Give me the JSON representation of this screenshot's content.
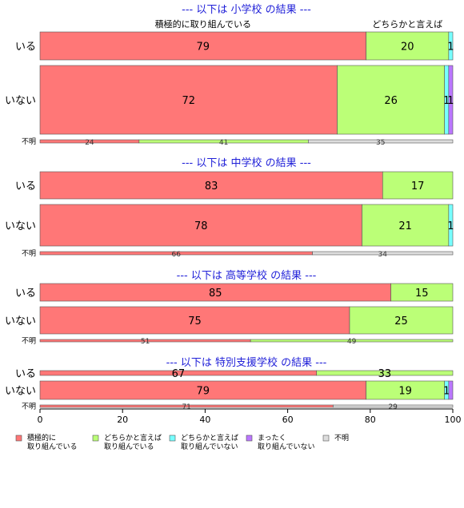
{
  "chart_data": {
    "type": "bar",
    "orientation": "horizontal",
    "stacked": true,
    "xlim": [
      0,
      100
    ],
    "x_ticks": [
      "0",
      "20",
      "40",
      "60",
      "80",
      "100"
    ],
    "legend": {
      "position": "bottom",
      "entries": [
        {
          "label_lines": [
            "積極的に",
            "取り組んでいる"
          ],
          "color": "#FF7777"
        },
        {
          "label_lines": [
            "どちらかと言えば",
            "取り組んでいる"
          ],
          "color": "#BBFF77"
        },
        {
          "label_lines": [
            "どちらかと言えば",
            "取り組んでいない"
          ],
          "color": "#77FFFF"
        },
        {
          "label_lines": [
            "まったく",
            "取り組んでいない"
          ],
          "color": "#BB77FF"
        },
        {
          "label_lines": [
            "不明"
          ],
          "color": "#DDDDDD"
        }
      ]
    },
    "segment_labels": {
      "positive": "積極的に取り組んでいる",
      "mild_positive": "どちらかと言えば"
    },
    "panels": [
      {
        "title": "--- 以下は 小学校 の結果 ---",
        "rows": [
          {
            "label": "いる",
            "values": [
              79,
              20,
              1,
              0,
              0
            ],
            "labels": [
              "79",
              "20",
              "1",
              "",
              ""
            ]
          },
          {
            "label": "いない",
            "values": [
              72,
              26,
              1,
              1,
              0
            ],
            "labels": [
              "72",
              "26",
              "1",
              "1",
              ""
            ]
          },
          {
            "label": "不明",
            "values": [
              24,
              41,
              0,
              0,
              35
            ],
            "labels": [
              "24",
              "41",
              "",
              "",
              "35"
            ],
            "small": true
          }
        ]
      },
      {
        "title": "--- 以下は 中学校 の結果 ---",
        "rows": [
          {
            "label": "いる",
            "values": [
              83,
              17,
              0,
              0,
              0
            ],
            "labels": [
              "83",
              "17",
              "",
              "",
              ""
            ]
          },
          {
            "label": "いない",
            "values": [
              78,
              21,
              1,
              0,
              0
            ],
            "labels": [
              "78",
              "21",
              "1",
              "",
              ""
            ]
          },
          {
            "label": "不明",
            "values": [
              66,
              0,
              0,
              0,
              34
            ],
            "labels": [
              "66",
              "",
              "",
              "",
              "34"
            ],
            "small": true
          }
        ]
      },
      {
        "title": "--- 以下は 高等学校 の結果 ---",
        "rows": [
          {
            "label": "いる",
            "values": [
              85,
              15,
              0,
              0,
              0
            ],
            "labels": [
              "85",
              "15",
              "",
              "",
              ""
            ]
          },
          {
            "label": "いない",
            "values": [
              75,
              25,
              0,
              0,
              0
            ],
            "labels": [
              "75",
              "25",
              "",
              "",
              ""
            ]
          },
          {
            "label": "不明",
            "values": [
              51,
              49,
              0,
              0,
              0
            ],
            "labels": [
              "51",
              "49",
              "",
              "",
              ""
            ],
            "small": true
          }
        ]
      },
      {
        "title": "--- 以下は 特別支援学校 の結果 ---",
        "rows": [
          {
            "label": "いる",
            "values": [
              67,
              33,
              0,
              0,
              0
            ],
            "labels": [
              "67",
              "33",
              "",
              "",
              ""
            ]
          },
          {
            "label": "いない",
            "values": [
              79,
              19,
              1,
              1,
              0
            ],
            "labels": [
              "79",
              "19",
              "1",
              "",
              ""
            ]
          },
          {
            "label": "不明",
            "values": [
              71,
              0,
              0,
              0,
              29
            ],
            "labels": [
              "71",
              "",
              "",
              "",
              "29"
            ],
            "small": true
          }
        ]
      }
    ]
  }
}
